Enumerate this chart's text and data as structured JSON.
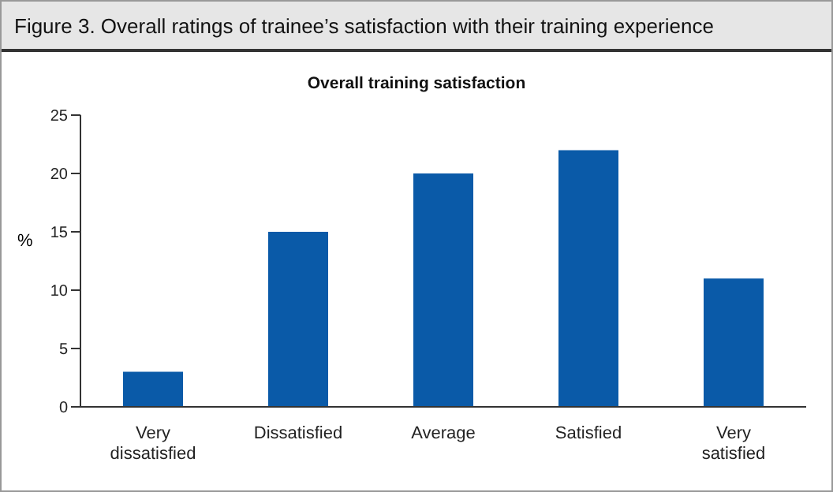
{
  "chart_data": {
    "type": "bar",
    "title": "Figure 3.  Overall ratings of trainee’s satisfaction with their training experience",
    "subtitle": "Overall training satisfaction",
    "ylabel": "%",
    "categories": [
      "Very dissatisfied",
      "Dissatisfied",
      "Average",
      "Satisfied",
      "Very satisfied"
    ],
    "values": [
      3,
      15,
      20,
      22,
      11
    ],
    "color": "#0a5aa8",
    "ylim": [
      0,
      25
    ],
    "yticks": [
      0,
      5,
      10,
      15,
      20,
      25
    ],
    "grid": false,
    "legend": false
  }
}
